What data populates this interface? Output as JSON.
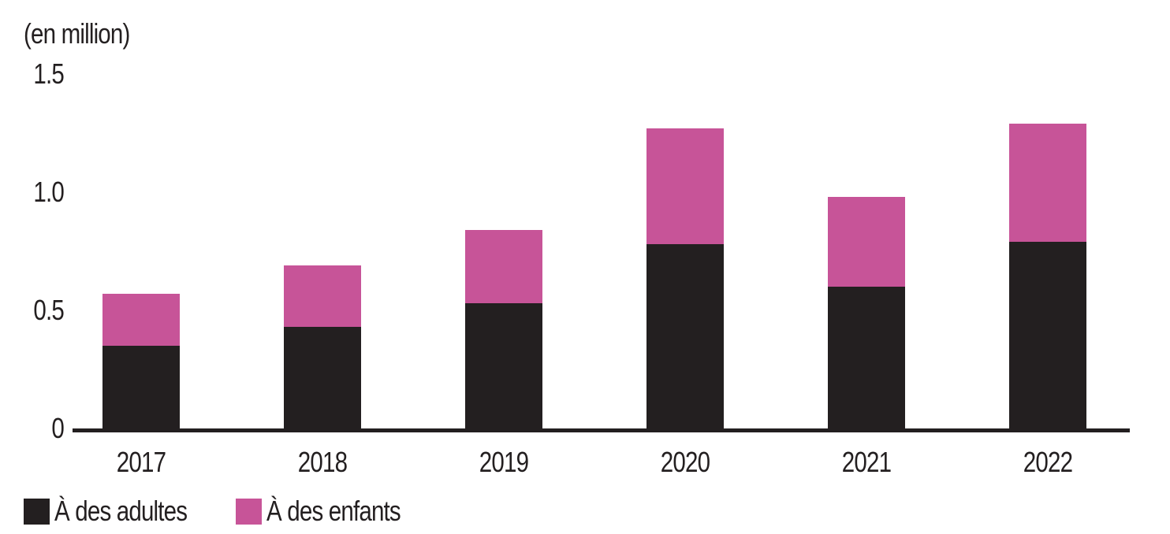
{
  "colors": {
    "ink": "#231f20",
    "pink": "#c75498",
    "background": "#ffffff"
  },
  "chart_data": {
    "type": "bar",
    "stacked": true,
    "title": "",
    "unit_label": "(en million)",
    "categories": [
      "2017",
      "2018",
      "2019",
      "2020",
      "2021",
      "2022"
    ],
    "series": [
      {
        "name": "À des adultes",
        "color": "#231f20",
        "values": [
          0.35,
          0.43,
          0.53,
          0.78,
          0.6,
          0.79
        ]
      },
      {
        "name": "À des enfants",
        "color": "#c75498",
        "values": [
          0.22,
          0.26,
          0.31,
          0.49,
          0.38,
          0.5
        ]
      }
    ],
    "ylim": [
      0,
      1.5
    ],
    "yticks": [
      "0",
      "0.5",
      "1.0",
      "1.5"
    ],
    "ytick_values": [
      0,
      0.5,
      1.0,
      1.5
    ],
    "grid": false,
    "legend_position": "bottom-left"
  }
}
